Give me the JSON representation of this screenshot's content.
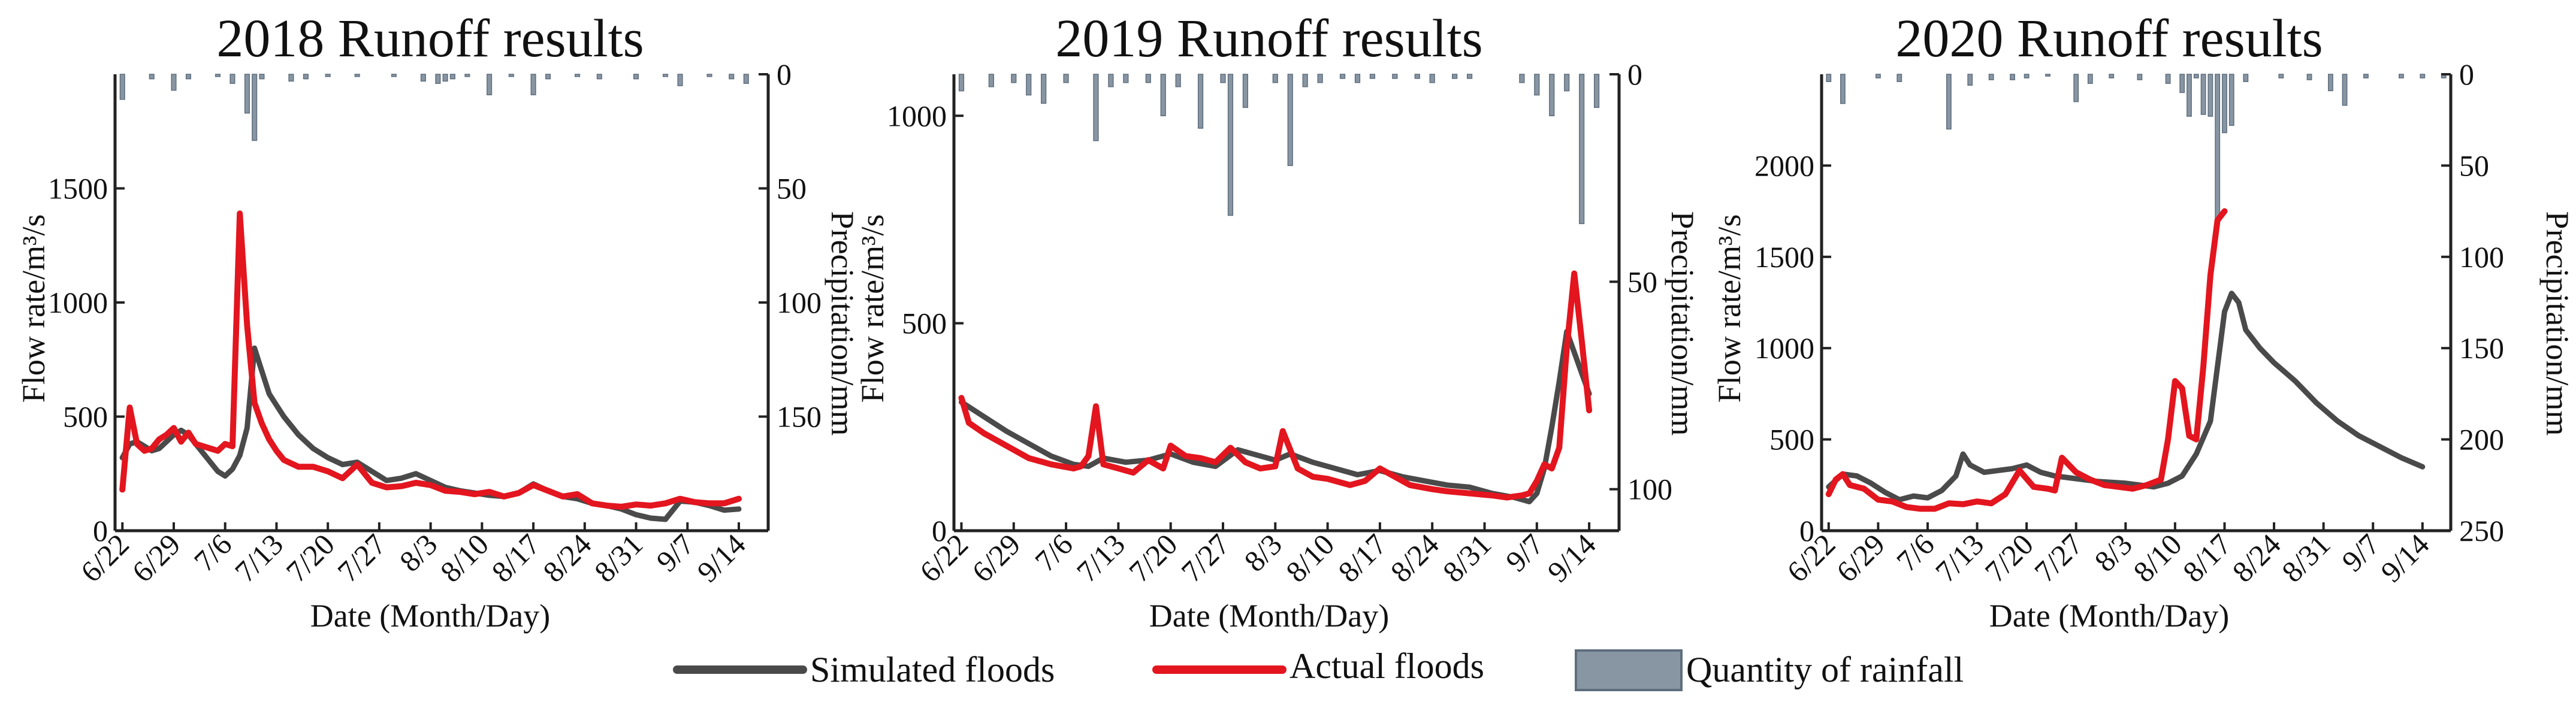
{
  "colors": {
    "simulated": "#4a4a4a",
    "actual": "#e3151e",
    "rainfall": "#8895a3",
    "rainfall_edge": "#5f6e7d"
  },
  "legend": {
    "simulated": "Simulated floods",
    "actual": "Actual floods",
    "rainfall": "Quantity of rainfall"
  },
  "chart_data": [
    {
      "type": "line",
      "title": "2018 Runoff results",
      "xlabel": "Date (Month/Day)",
      "ylabel": "Flow rate/m³/s",
      "y2label": "Precipitation/mm",
      "x_ticks": [
        "6/22",
        "6/29",
        "7/6",
        "7/13",
        "7/20",
        "7/27",
        "8/3",
        "8/10",
        "8/17",
        "8/24",
        "8/31",
        "9/7",
        "9/14"
      ],
      "xlim": [
        "06-21",
        "09-18"
      ],
      "ylim": [
        0,
        2000
      ],
      "y_ticks": [
        0,
        500,
        1000,
        1500
      ],
      "y2lim": [
        0,
        200
      ],
      "y2_ticks": [
        0,
        50,
        100,
        150
      ],
      "y2_inverted": true,
      "grid": false,
      "series": [
        {
          "name": "Simulated floods",
          "x": [
            "06-22",
            "06-23",
            "06-24",
            "06-25",
            "06-26",
            "06-27",
            "06-28",
            "06-29",
            "06-30",
            "07-01",
            "07-02",
            "07-03",
            "07-04",
            "07-05",
            "07-06",
            "07-07",
            "07-08",
            "07-09",
            "07-10",
            "07-11",
            "07-12",
            "07-13",
            "07-14",
            "07-16",
            "07-18",
            "07-20",
            "07-22",
            "07-24",
            "07-26",
            "07-28",
            "07-30",
            "08-01",
            "08-03",
            "08-05",
            "08-07",
            "08-09",
            "08-11",
            "08-13",
            "08-15",
            "08-17",
            "08-19",
            "08-21",
            "08-23",
            "08-25",
            "08-27",
            "08-29",
            "08-31",
            "09-02",
            "09-04",
            "09-06",
            "09-08",
            "09-10",
            "09-12",
            "09-14"
          ],
          "y": [
            320,
            380,
            390,
            370,
            350,
            360,
            390,
            420,
            440,
            420,
            380,
            340,
            300,
            260,
            240,
            270,
            330,
            450,
            800,
            700,
            600,
            550,
            500,
            420,
            360,
            320,
            290,
            300,
            260,
            220,
            230,
            250,
            220,
            190,
            175,
            165,
            155,
            150,
            165,
            205,
            175,
            150,
            140,
            120,
            110,
            95,
            70,
            55,
            50,
            130,
            125,
            110,
            90,
            95
          ]
        },
        {
          "name": "Actual floods",
          "x": [
            "06-22",
            "06-23",
            "06-24",
            "06-25",
            "06-26",
            "06-27",
            "06-28",
            "06-29",
            "06-30",
            "07-01",
            "07-02",
            "07-03",
            "07-04",
            "07-05",
            "07-06",
            "07-07",
            "07-08",
            "07-09",
            "07-10",
            "07-11",
            "07-12",
            "07-13",
            "07-14",
            "07-16",
            "07-18",
            "07-20",
            "07-22",
            "07-24",
            "07-26",
            "07-28",
            "07-30",
            "08-01",
            "08-03",
            "08-05",
            "08-07",
            "08-09",
            "08-11",
            "08-13",
            "08-15",
            "08-17",
            "08-19",
            "08-21",
            "08-23",
            "08-25",
            "08-27",
            "08-29",
            "08-31",
            "09-02",
            "09-04",
            "09-06",
            "09-08",
            "09-10",
            "09-12",
            "09-14"
          ],
          "y": [
            180,
            540,
            380,
            350,
            360,
            400,
            420,
            450,
            390,
            430,
            380,
            370,
            360,
            350,
            380,
            370,
            1390,
            900,
            560,
            470,
            400,
            350,
            310,
            280,
            280,
            260,
            230,
            290,
            210,
            190,
            195,
            210,
            200,
            175,
            170,
            160,
            170,
            150,
            165,
            200,
            175,
            150,
            160,
            120,
            110,
            105,
            115,
            110,
            120,
            140,
            125,
            120,
            120,
            140
          ]
        }
      ],
      "rainfall": {
        "x": [
          "06-22",
          "06-26",
          "06-29",
          "07-01",
          "07-05",
          "07-07",
          "07-09",
          "07-10",
          "07-11",
          "07-15",
          "07-17",
          "07-20",
          "07-24",
          "07-29",
          "08-02",
          "08-04",
          "08-05",
          "08-06",
          "08-08",
          "08-11",
          "08-14",
          "08-17",
          "08-19",
          "08-23",
          "08-26",
          "08-31",
          "09-04",
          "09-06",
          "09-10",
          "09-13",
          "09-15"
        ],
        "y": [
          11,
          2,
          7,
          2,
          1,
          4,
          17,
          29,
          2,
          3,
          2,
          1,
          1,
          1,
          3,
          4,
          3,
          2,
          1,
          9,
          1,
          9,
          2,
          1,
          2,
          2,
          1,
          5,
          1,
          2,
          4
        ]
      }
    },
    {
      "type": "line",
      "title": "2019 Runoff results",
      "xlabel": "Date (Month/Day)",
      "ylabel": "Flow rate/m³/s",
      "y2label": "Precipitation/mm",
      "x_ticks": [
        "6/22",
        "6/29",
        "7/6",
        "7/13",
        "7/20",
        "7/27",
        "8/3",
        "8/10",
        "8/17",
        "8/24",
        "8/31",
        "9/7",
        "9/14"
      ],
      "xlim": [
        "06-21",
        "09-18"
      ],
      "ylim": [
        0,
        1100
      ],
      "y_ticks": [
        0,
        500,
        1000
      ],
      "y2lim": [
        0,
        110
      ],
      "y2_ticks": [
        0,
        50,
        100
      ],
      "y2_inverted": true,
      "grid": false,
      "series": [
        {
          "name": "Simulated floods",
          "x": [
            "06-22",
            "06-25",
            "06-28",
            "07-01",
            "07-04",
            "07-07",
            "07-09",
            "07-11",
            "07-14",
            "07-17",
            "07-20",
            "07-23",
            "07-26",
            "07-29",
            "08-01",
            "08-03",
            "08-05",
            "08-08",
            "08-11",
            "08-14",
            "08-17",
            "08-20",
            "08-23",
            "08-26",
            "08-29",
            "09-01",
            "09-04",
            "09-06",
            "09-07",
            "09-08",
            "09-09",
            "09-10",
            "09-11",
            "09-12",
            "09-13",
            "09-14"
          ],
          "y": [
            310,
            275,
            240,
            210,
            180,
            160,
            155,
            175,
            165,
            170,
            185,
            165,
            155,
            195,
            180,
            170,
            185,
            165,
            150,
            135,
            145,
            130,
            120,
            110,
            105,
            90,
            80,
            70,
            90,
            150,
            250,
            360,
            480,
            430,
            380,
            330
          ]
        },
        {
          "name": "Actual floods",
          "x": [
            "06-22",
            "06-23",
            "06-25",
            "06-28",
            "07-01",
            "07-04",
            "07-07",
            "07-08",
            "07-09",
            "07-10",
            "07-11",
            "07-13",
            "07-15",
            "07-17",
            "07-19",
            "07-20",
            "07-22",
            "07-24",
            "07-26",
            "07-28",
            "07-30",
            "08-01",
            "08-03",
            "08-04",
            "08-06",
            "08-08",
            "08-10",
            "08-13",
            "08-15",
            "08-17",
            "08-19",
            "08-21",
            "08-24",
            "08-26",
            "08-29",
            "09-01",
            "09-03",
            "09-05",
            "09-06",
            "09-07",
            "09-08",
            "09-09",
            "09-10",
            "09-11",
            "09-12",
            "09-13",
            "09-14"
          ],
          "y": [
            320,
            260,
            235,
            205,
            175,
            160,
            150,
            155,
            180,
            300,
            160,
            150,
            140,
            170,
            150,
            205,
            180,
            175,
            165,
            200,
            165,
            150,
            155,
            240,
            150,
            130,
            125,
            110,
            120,
            150,
            130,
            110,
            100,
            95,
            90,
            85,
            80,
            85,
            90,
            120,
            160,
            150,
            200,
            440,
            620,
            460,
            290
          ]
        }
      ],
      "rainfall": {
        "x": [
          "06-22",
          "06-26",
          "06-29",
          "07-01",
          "07-03",
          "07-06",
          "07-10",
          "07-12",
          "07-14",
          "07-17",
          "07-19",
          "07-21",
          "07-24",
          "07-27",
          "07-28",
          "07-30",
          "08-03",
          "08-05",
          "08-07",
          "08-09",
          "08-12",
          "08-14",
          "08-16",
          "08-19",
          "08-22",
          "08-24",
          "08-27",
          "08-29",
          "09-05",
          "09-07",
          "09-09",
          "09-11",
          "09-13",
          "09-15"
        ],
        "y": [
          4,
          3,
          2,
          5,
          7,
          2,
          16,
          3,
          2,
          2,
          10,
          3,
          13,
          2,
          34,
          8,
          2,
          22,
          3,
          2,
          1,
          2,
          1,
          1,
          1,
          2,
          1,
          1,
          2,
          5,
          10,
          4,
          36,
          8
        ]
      }
    },
    {
      "type": "line",
      "title": "2020 Runoff results",
      "xlabel": "Date (Month/Day)",
      "ylabel": "Flow rate/m³/s",
      "y2label": "Precipitation/mm",
      "x_ticks": [
        "6/22",
        "6/29",
        "7/6",
        "7/13",
        "7/20",
        "7/27",
        "8/3",
        "8/10",
        "8/17",
        "8/24",
        "8/31",
        "9/7",
        "9/14"
      ],
      "xlim": [
        "06-21",
        "09-18"
      ],
      "ylim": [
        0,
        2500
      ],
      "y_ticks": [
        0,
        500,
        1000,
        1500,
        2000
      ],
      "y2lim": [
        0,
        250
      ],
      "y2_ticks": [
        0,
        50,
        100,
        150,
        200,
        250
      ],
      "y2_inverted": true,
      "grid": false,
      "series": [
        {
          "name": "Simulated floods",
          "x": [
            "06-22",
            "06-24",
            "06-26",
            "06-28",
            "06-30",
            "07-02",
            "07-04",
            "07-06",
            "07-08",
            "07-10",
            "07-11",
            "07-12",
            "07-14",
            "07-16",
            "07-18",
            "07-20",
            "07-22",
            "07-24",
            "07-26",
            "07-28",
            "07-30",
            "08-01",
            "08-03",
            "08-05",
            "08-07",
            "08-09",
            "08-11",
            "08-13",
            "08-15",
            "08-16",
            "08-17",
            "08-18",
            "08-19",
            "08-20",
            "08-22",
            "08-24",
            "08-27",
            "08-30",
            "09-02",
            "09-05",
            "09-08",
            "09-11",
            "09-14"
          ],
          "y": [
            240,
            310,
            300,
            260,
            210,
            170,
            190,
            180,
            220,
            300,
            420,
            360,
            320,
            330,
            340,
            360,
            320,
            300,
            290,
            280,
            270,
            265,
            260,
            250,
            240,
            260,
            300,
            420,
            600,
            900,
            1200,
            1300,
            1250,
            1100,
            1000,
            920,
            820,
            700,
            600,
            520,
            460,
            400,
            350
          ]
        },
        {
          "name": "Actual floods",
          "x": [
            "06-22",
            "06-23",
            "06-24",
            "06-25",
            "06-27",
            "06-29",
            "07-01",
            "07-03",
            "07-05",
            "07-07",
            "07-09",
            "07-11",
            "07-13",
            "07-15",
            "07-17",
            "07-19",
            "07-21",
            "07-23",
            "07-24",
            "07-25",
            "07-27",
            "07-29",
            "07-31",
            "08-02",
            "08-04",
            "08-06",
            "08-08",
            "08-09",
            "08-10",
            "08-11",
            "08-12",
            "08-13",
            "08-14",
            "08-15",
            "08-16",
            "08-17"
          ],
          "y": [
            200,
            280,
            310,
            250,
            230,
            170,
            160,
            130,
            120,
            120,
            150,
            145,
            160,
            150,
            200,
            330,
            240,
            230,
            220,
            400,
            320,
            280,
            250,
            240,
            230,
            250,
            280,
            500,
            820,
            780,
            520,
            500,
            900,
            1400,
            1700,
            1750
          ]
        }
      ],
      "rainfall": {
        "x": [
          "06-22",
          "06-24",
          "06-29",
          "07-02",
          "07-09",
          "07-12",
          "07-15",
          "07-18",
          "07-20",
          "07-23",
          "07-27",
          "07-29",
          "08-01",
          "08-05",
          "08-09",
          "08-11",
          "08-12",
          "08-13",
          "08-14",
          "08-15",
          "08-16",
          "08-17",
          "08-18",
          "08-20",
          "08-25",
          "08-29",
          "09-01",
          "09-03",
          "09-06",
          "09-11",
          "09-14",
          "09-17"
        ],
        "y": [
          4,
          16,
          2,
          4,
          30,
          6,
          3,
          3,
          2,
          1,
          15,
          5,
          2,
          3,
          5,
          10,
          23,
          2,
          22,
          23,
          80,
          32,
          28,
          4,
          2,
          3,
          9,
          17,
          2,
          2,
          2,
          2
        ]
      }
    }
  ]
}
